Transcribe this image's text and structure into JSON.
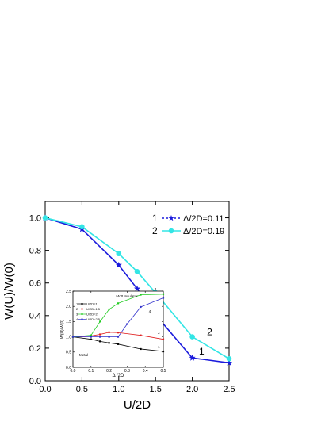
{
  "chart_data": [
    {
      "type": "line",
      "xlabel": "U/2D",
      "ylabel": "W(U)/W(0)",
      "xlim": [
        0,
        2.5
      ],
      "ylim": [
        0,
        1.1
      ],
      "xticks": [
        "0.0",
        "0.5",
        "1.0",
        "1.5",
        "2.0",
        "2.5"
      ],
      "yticks": [
        "0.0",
        "0.2",
        "0.4",
        "0.6",
        "0.8",
        "1.0"
      ],
      "legend_position": "top-right",
      "series": [
        {
          "name": "Δ/2D=0.11",
          "number": "1",
          "color": "#1a1adc",
          "marker": "star",
          "x": [
            0,
            0.5,
            1.0,
            1.25,
            1.5,
            2.0,
            2.5
          ],
          "y": [
            1.0,
            0.93,
            0.71,
            0.565,
            0.405,
            0.14,
            0.11
          ]
        },
        {
          "name": "Δ/2D=0.19",
          "number": "2",
          "color": "#33e5e5",
          "marker": "circle",
          "x": [
            0,
            0.5,
            1.0,
            1.25,
            1.5,
            2.0,
            2.5
          ],
          "y": [
            1.0,
            0.945,
            0.78,
            0.67,
            0.54,
            0.27,
            0.135
          ]
        }
      ]
    },
    {
      "type": "line",
      "xlabel": "Δ /2D",
      "ylabel": "W(U)/W(0)",
      "xlim": [
        0,
        0.5
      ],
      "ylim": [
        0,
        2.5
      ],
      "xticks": [
        "0.0",
        "0.1",
        "0.2",
        "0.3",
        "0.4",
        "0.5"
      ],
      "yticks": [
        "0.0",
        "0.5",
        "1.0",
        "1.5",
        "2.0",
        "2.5"
      ],
      "annotations": [
        "Mott Insulator",
        "Metal"
      ],
      "series": [
        {
          "name": "U/2D=1",
          "number": "1",
          "color": "#000000",
          "x": [
            0,
            0.1,
            0.15,
            0.2,
            0.25,
            0.375,
            0.5
          ],
          "y": [
            1.0,
            0.92,
            0.85,
            0.8,
            0.76,
            0.6,
            0.52
          ]
        },
        {
          "name": "U/2D=1.5",
          "number": "2",
          "color": "#e02020",
          "x": [
            0,
            0.1,
            0.15,
            0.2,
            0.25,
            0.375,
            0.5
          ],
          "y": [
            1.0,
            1.03,
            1.08,
            1.15,
            1.14,
            1.05,
            0.92
          ]
        },
        {
          "name": "U/2D=2",
          "number": "3",
          "color": "#22cc22",
          "x": [
            0,
            0.1,
            0.15,
            0.2,
            0.25,
            0.375,
            0.5
          ],
          "y": [
            1.0,
            1.05,
            1.5,
            1.9,
            2.1,
            2.38,
            2.4
          ]
        },
        {
          "name": "U/2D=2.5",
          "number": "4",
          "color": "#3333cc",
          "x": [
            0,
            0.1,
            0.15,
            0.2,
            0.25,
            0.3,
            0.375,
            0.5
          ],
          "y": [
            1.0,
            1.0,
            1.0,
            1.0,
            1.0,
            1.42,
            1.98,
            2.28
          ]
        }
      ]
    }
  ]
}
